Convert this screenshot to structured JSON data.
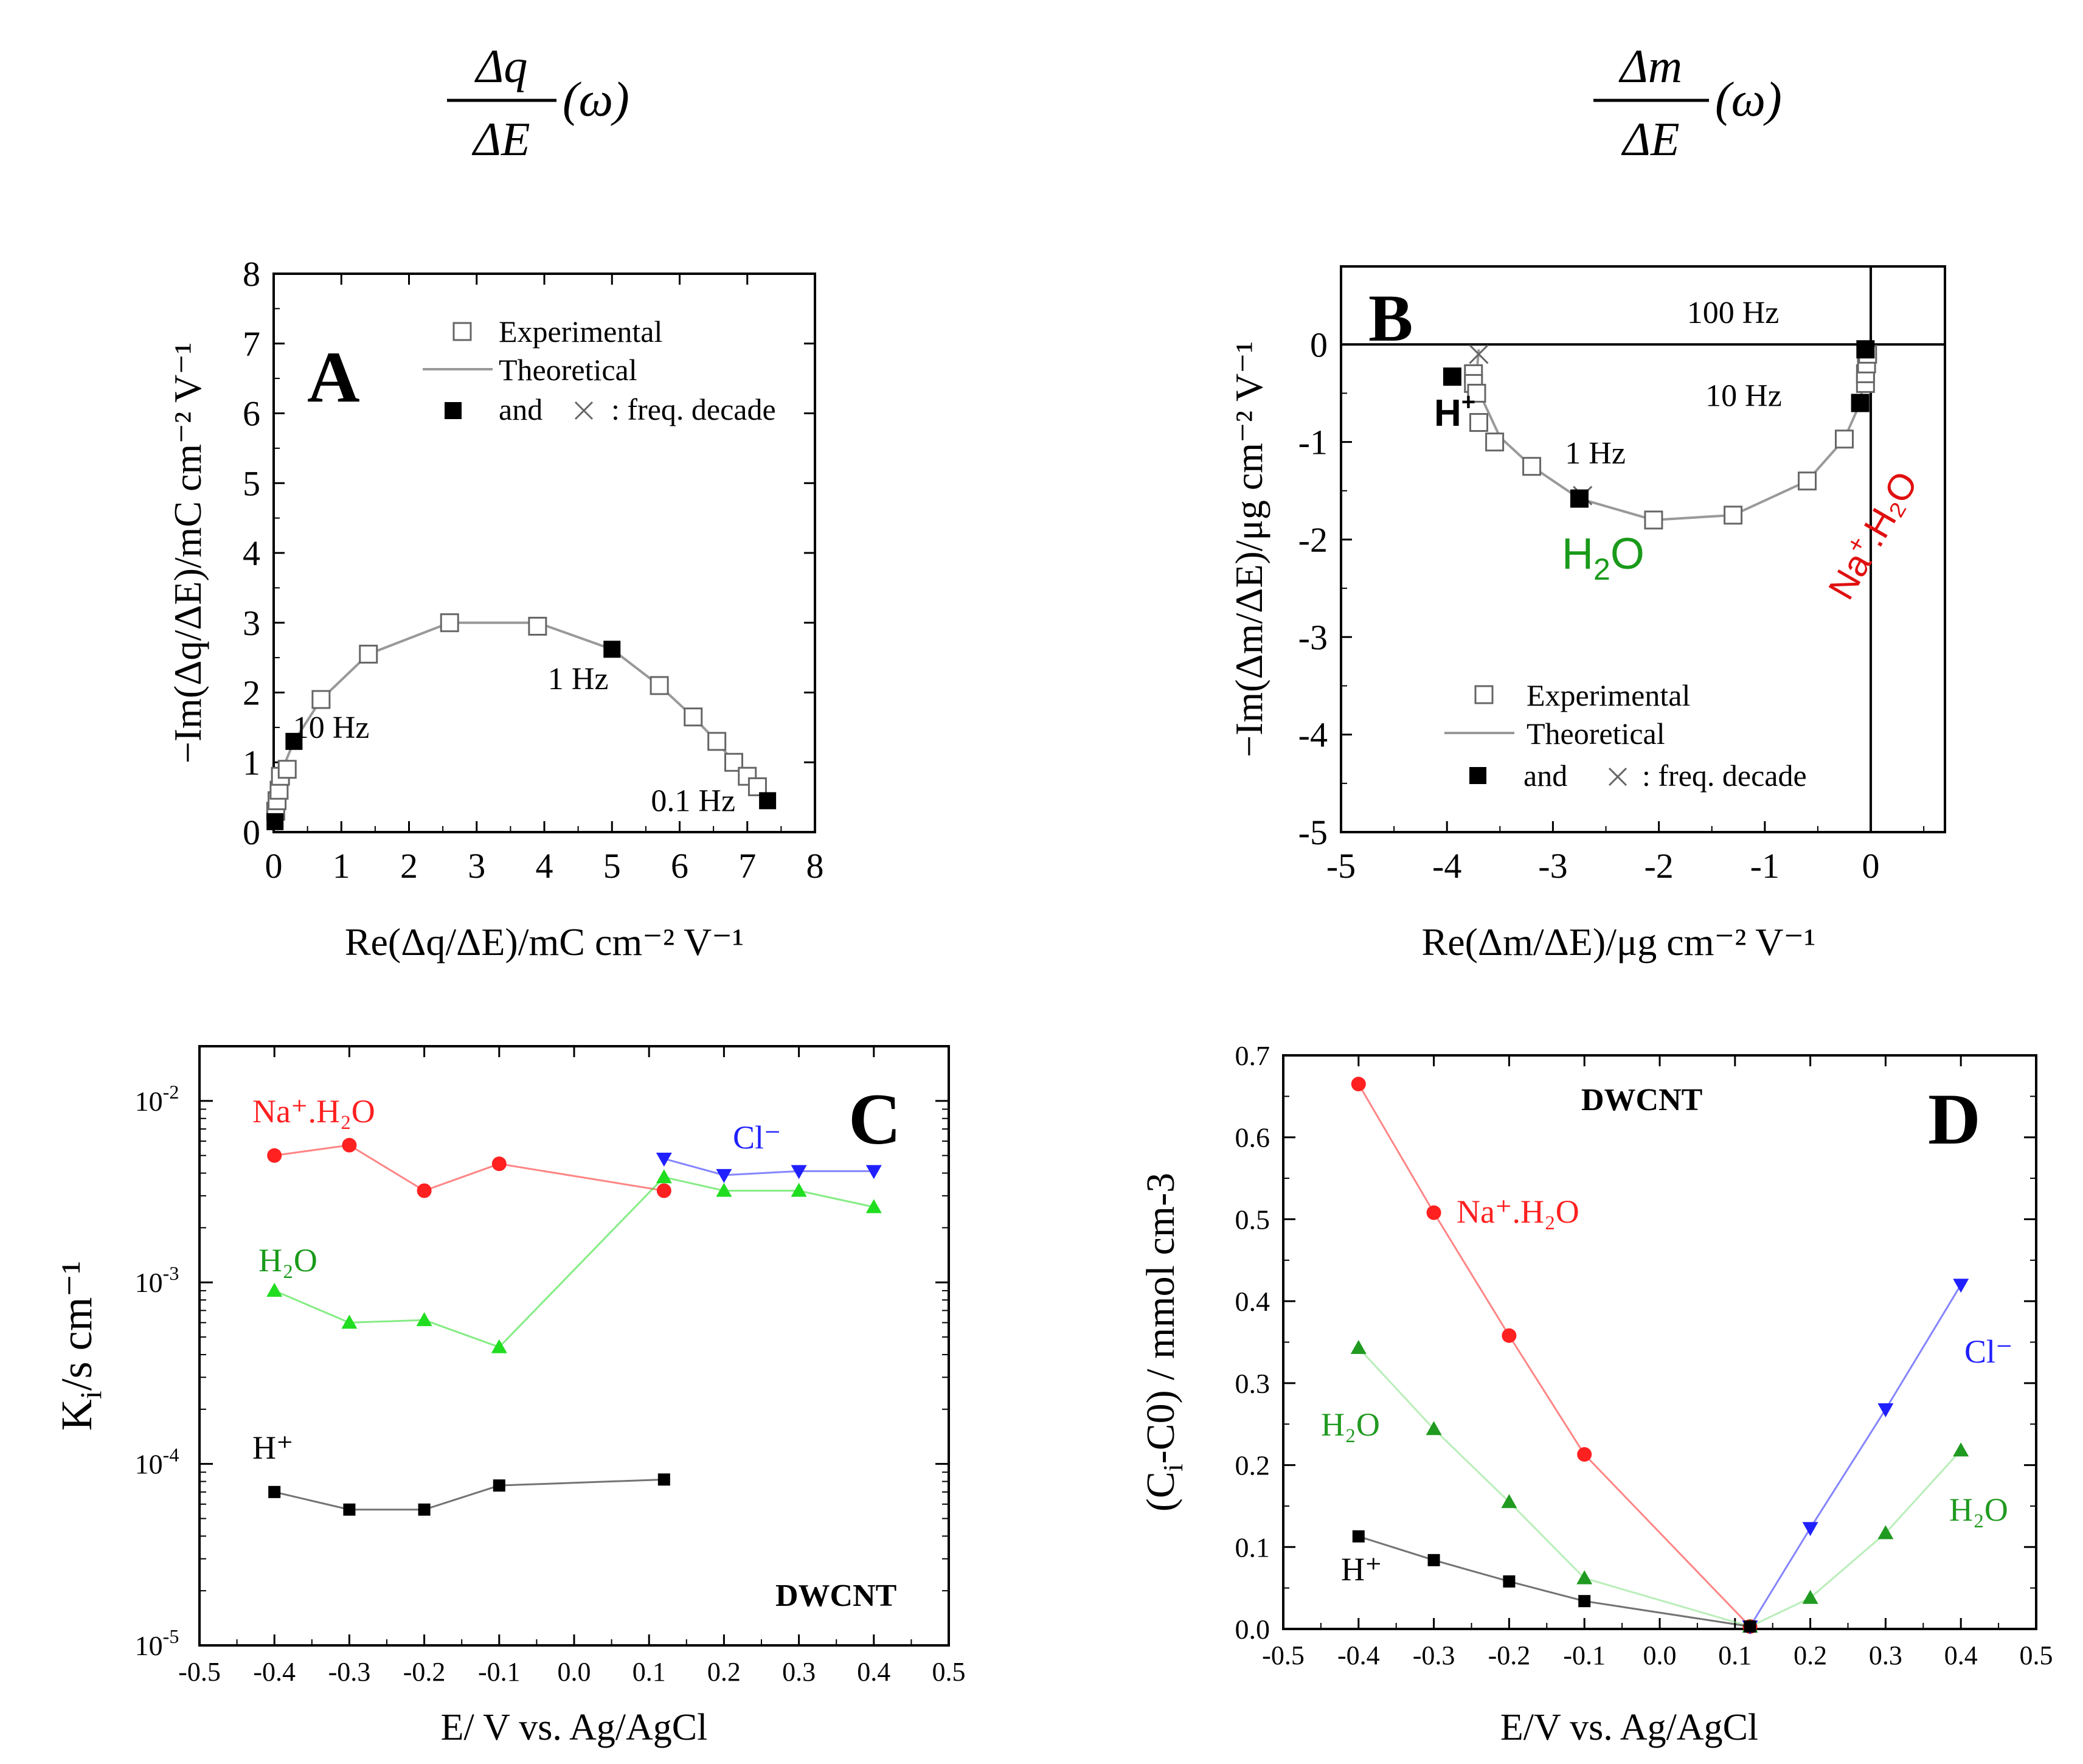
{
  "headings": {
    "left": {
      "numerator": "Δq",
      "denominator": "ΔE",
      "argument": "(ω)"
    },
    "right": {
      "numerator": "Δm",
      "denominator": "ΔE",
      "argument": "(ω)"
    }
  },
  "chart_data": [
    {
      "panel": "A",
      "type": "scatter",
      "xlabel": "Re(Δq/ΔE)/mC cm⁻² V⁻¹",
      "ylabel": "−Im(Δq/ΔE)/mC cm⁻² V⁻¹",
      "xlim": [
        0,
        8
      ],
      "ylim": [
        0,
        8
      ],
      "xticks": [
        0,
        1,
        2,
        3,
        4,
        5,
        6,
        7,
        8
      ],
      "yticks": [
        0,
        1,
        2,
        3,
        4,
        5,
        6,
        7,
        8
      ],
      "legend": [
        {
          "marker": "open-square",
          "label": "Experimental"
        },
        {
          "marker": "line",
          "label": "Theoretical"
        },
        {
          "marker": "filled-square-and-cross",
          "label_and": "and",
          "label": ": freq. decade"
        }
      ],
      "experimental": [
        [
          0.03,
          0.3
        ],
        [
          0.05,
          0.45
        ],
        [
          0.08,
          0.6
        ],
        [
          0.1,
          0.8
        ],
        [
          0.2,
          0.9
        ],
        [
          0.7,
          1.9
        ],
        [
          1.4,
          2.55
        ],
        [
          2.6,
          3.0
        ],
        [
          3.9,
          2.95
        ],
        [
          5.7,
          2.1
        ],
        [
          6.2,
          1.65
        ],
        [
          6.55,
          1.3
        ],
        [
          6.8,
          1.0
        ],
        [
          7.0,
          0.8
        ],
        [
          7.15,
          0.65
        ]
      ],
      "theoretical": [
        [
          0.0,
          0.05
        ],
        [
          0.02,
          0.3
        ],
        [
          0.05,
          0.55
        ],
        [
          0.15,
          0.95
        ],
        [
          0.3,
          1.3
        ],
        [
          0.7,
          1.9
        ],
        [
          1.4,
          2.55
        ],
        [
          2.6,
          3.0
        ],
        [
          3.9,
          3.0
        ],
        [
          5.0,
          2.62
        ],
        [
          5.7,
          2.1
        ],
        [
          6.2,
          1.65
        ],
        [
          6.55,
          1.3
        ],
        [
          6.8,
          1.0
        ],
        [
          7.0,
          0.8
        ],
        [
          7.15,
          0.65
        ],
        [
          7.3,
          0.45
        ]
      ],
      "decade_points": [
        [
          0.02,
          0.15
        ],
        [
          0.3,
          1.3
        ],
        [
          5.0,
          2.62
        ],
        [
          7.3,
          0.45
        ]
      ],
      "annotations": [
        {
          "text": "10 Hz",
          "x": 0.85,
          "y": 1.35
        },
        {
          "text": "1 Hz",
          "x": 4.5,
          "y": 2.05
        },
        {
          "text": "0.1 Hz",
          "x": 6.2,
          "y": 0.3
        }
      ]
    },
    {
      "panel": "B",
      "type": "scatter",
      "xlabel": "Re(Δm/ΔE)/μg cm⁻² V⁻¹",
      "ylabel": "−Im(Δm/ΔE)/μg cm⁻² V⁻¹",
      "xlim": [
        -5,
        0.7
      ],
      "ylim": [
        -5,
        0.8
      ],
      "xticks": [
        -5,
        -4,
        -3,
        -2,
        -1,
        0
      ],
      "yticks": [
        0,
        -1,
        -2,
        -3,
        -4,
        -5
      ],
      "legend": [
        {
          "marker": "open-square",
          "label": "Experimental"
        },
        {
          "marker": "line",
          "label": "Theoretical"
        },
        {
          "marker": "filled-square-and-cross",
          "label_and": "and",
          "label": ": freq. decade"
        }
      ],
      "experimental": [
        [
          -3.75,
          -0.3
        ],
        [
          -3.75,
          -0.4
        ],
        [
          -3.72,
          -0.5
        ],
        [
          -3.7,
          -0.8
        ],
        [
          -3.55,
          -1.0
        ],
        [
          -3.2,
          -1.25
        ],
        [
          -2.05,
          -1.8
        ],
        [
          -1.3,
          -1.75
        ],
        [
          -0.6,
          -1.4
        ],
        [
          -0.25,
          -0.97
        ],
        [
          -0.05,
          -0.4
        ],
        [
          -0.05,
          -0.3
        ],
        [
          -0.04,
          -0.2
        ],
        [
          -0.03,
          -0.1
        ]
      ],
      "theoretical": [
        [
          -3.7,
          -0.05
        ],
        [
          -3.72,
          -0.3
        ],
        [
          -3.65,
          -0.6
        ],
        [
          -3.5,
          -0.95
        ],
        [
          -3.2,
          -1.25
        ],
        [
          -2.75,
          -1.58
        ],
        [
          -2.05,
          -1.8
        ],
        [
          -1.3,
          -1.75
        ],
        [
          -0.6,
          -1.4
        ],
        [
          -0.25,
          -0.97
        ],
        [
          -0.1,
          -0.6
        ],
        [
          -0.05,
          -0.2
        ],
        [
          -0.02,
          -0.02
        ]
      ],
      "decade_points": [
        [
          -3.95,
          -0.33
        ],
        [
          -2.75,
          -1.58
        ],
        [
          -0.1,
          -0.6
        ],
        [
          -0.05,
          -0.05
        ]
      ],
      "decade_crosses": [
        [
          -3.7,
          -0.1
        ],
        [
          -2.72,
          -1.55
        ]
      ],
      "annotations": [
        {
          "text": "100 Hz",
          "x": -1.3,
          "y": 0.22
        },
        {
          "text": "10 Hz",
          "x": -1.2,
          "y": -0.63
        },
        {
          "text": "1 Hz",
          "x": -2.6,
          "y": -1.22
        }
      ],
      "species_labels": [
        {
          "text": "H",
          "sup": "+",
          "color": "#000000"
        },
        {
          "text": "H",
          "sub": "2",
          "tail": "O",
          "color": "#1a9a1a"
        },
        {
          "text": "Na",
          "sup": "+",
          "tail": ".H₂O",
          "color": "#e01010"
        }
      ]
    },
    {
      "panel": "C",
      "type": "line",
      "xlabel": "E/ V vs. Ag/AgCl",
      "ylabel": "K",
      "ylabel_sub": "i",
      "ylabel_tail": "/s cm⁻¹",
      "yscale": "log",
      "xlim": [
        -0.5,
        0.5
      ],
      "ylim": [
        1e-05,
        0.02
      ],
      "xticks": [
        -0.5,
        -0.4,
        -0.3,
        -0.2,
        -0.1,
        0.0,
        0.1,
        0.2,
        0.3,
        0.4,
        0.5
      ],
      "xtick_labels": [
        "-0.5",
        "-0.4",
        "-0.3",
        "-0.2",
        "-0.1",
        "0.0",
        "0.1",
        "0.2",
        "0.3",
        "0.4",
        "0.5"
      ],
      "yticks": [
        {
          "base": "10",
          "exp": "-5"
        },
        {
          "base": "10",
          "exp": "-4"
        },
        {
          "base": "10",
          "exp": "-3"
        },
        {
          "base": "10",
          "exp": "-2"
        }
      ],
      "corner_text": "DWCNT",
      "series": [
        {
          "name": "Na⁺.H₂O",
          "color": "#ff2020",
          "marker": "circle",
          "x": [
            -0.4,
            -0.3,
            -0.2,
            -0.1,
            0.12
          ],
          "y": [
            0.005,
            0.0057,
            0.0032,
            0.0045,
            0.0032
          ]
        },
        {
          "name": "H₂O",
          "color": "#20dd20",
          "marker": "triangle-up",
          "x": [
            -0.4,
            -0.3,
            -0.2,
            -0.1,
            0.12,
            0.2,
            0.3,
            0.4
          ],
          "y": [
            0.0009,
            0.0006,
            0.00062,
            0.00044,
            0.0038,
            0.0032,
            0.0032,
            0.0026
          ]
        },
        {
          "name": "Cl⁻",
          "color": "#2020ff",
          "marker": "triangle-down",
          "x": [
            0.12,
            0.2,
            0.3,
            0.4
          ],
          "y": [
            0.0048,
            0.0039,
            0.0041,
            0.0041
          ]
        },
        {
          "name": "H⁺",
          "color": "#000000",
          "marker": "square",
          "x": [
            -0.4,
            -0.3,
            -0.2,
            -0.1,
            0.12
          ],
          "y": [
            7e-05,
            5.6e-05,
            5.6e-05,
            7.6e-05,
            8.2e-05
          ]
        }
      ]
    },
    {
      "panel": "D",
      "type": "line",
      "xlabel": "E/V vs. Ag/AgCl",
      "ylabel": "(C",
      "ylabel_sub": "i",
      "ylabel_tail": "-C0) / mmol cm-3",
      "xlim": [
        -0.5,
        0.5
      ],
      "ylim": [
        0,
        0.7
      ],
      "xticks": [
        -0.5,
        -0.4,
        -0.3,
        -0.2,
        -0.1,
        0.0,
        0.1,
        0.2,
        0.3,
        0.4,
        0.5
      ],
      "xtick_labels": [
        "-0.5",
        "-0.4",
        "-0.3",
        "-0.2",
        "-0.1",
        "0.0",
        "0.1",
        "0.2",
        "0.3",
        "0.4",
        "0.5"
      ],
      "yticks": [
        0.0,
        0.1,
        0.2,
        0.3,
        0.4,
        0.5,
        0.6,
        0.7
      ],
      "ytick_labels": [
        "0.0",
        "0.1",
        "0.2",
        "0.3",
        "0.4",
        "0.5",
        "0.6",
        "0.7"
      ],
      "corner_text": "DWCNT",
      "series": [
        {
          "name": "Na⁺.H₂O",
          "color": "#ff2020",
          "marker": "circle",
          "x": [
            -0.4,
            -0.3,
            -0.2,
            -0.1,
            0.12
          ],
          "y": [
            0.665,
            0.508,
            0.358,
            0.213,
            0.003
          ]
        },
        {
          "name": "H₂O",
          "color": "#209a20",
          "line_color": "#80e080",
          "marker": "triangle-up",
          "x": [
            -0.4,
            -0.3,
            -0.2,
            -0.1,
            0.12,
            0.2,
            0.3,
            0.4
          ],
          "y": [
            0.343,
            0.244,
            0.155,
            0.062,
            0.003,
            0.038,
            0.117,
            0.218
          ]
        },
        {
          "name": "Cl⁻",
          "color": "#2020ff",
          "marker": "triangle-down",
          "x": [
            0.12,
            0.2,
            0.3,
            0.4
          ],
          "y": [
            0.003,
            0.123,
            0.268,
            0.42
          ]
        },
        {
          "name": "H⁺",
          "color": "#000000",
          "marker": "square",
          "x": [
            -0.4,
            -0.3,
            -0.2,
            -0.1,
            0.12
          ],
          "y": [
            0.113,
            0.084,
            0.058,
            0.034,
            0.003
          ]
        }
      ]
    }
  ]
}
